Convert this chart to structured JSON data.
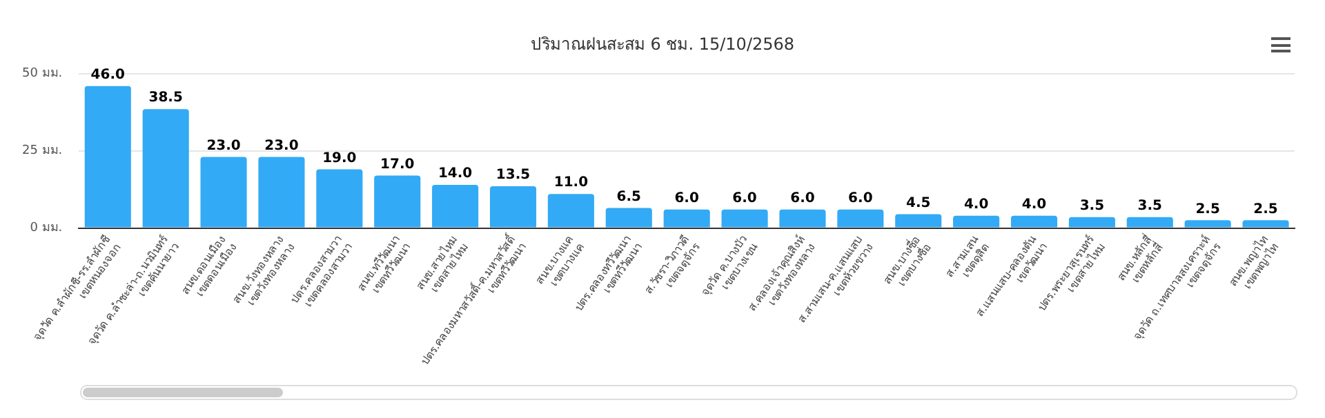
{
  "chart_data": {
    "type": "bar",
    "title": "ปริมาณฝนสะสม 6 ชม. 15/10/2568",
    "categories": [
      "จุดวัด ค.ลำผักชี-รร.ลำผักชี\nเขตหนองจอก",
      "จุดวัด ค.ลำชะล่า-ถ.นวมินทร์\nเขตคันนายาว",
      "สนข.ดอนเมือง\nเขตดอนเมือง",
      "สนข.วังทองหลาง\nเขตวังทองหลาง",
      "ปตร.คลองสามวา\nเขตคลองสามวา",
      "สนข.ทวีวัฒนา\nเขตทวีวัฒนา",
      "สนข.สายไหม\nเขตสายไหม",
      "ปตร.คลองมหาสวัสดิ์-ค.มหาสวัสดิ์\nเขตทวีวัฒนา",
      "สนข.บางแค\nเขตบางแค",
      "ปตร.คลองทวีวัฒนา\nเขตทวีวัฒนา",
      "ส.วัชรา-วิภาวดี\nเขตจตุจักร",
      "จุดวัด ค.บางบัว\nเขตบางเขน",
      "ส.คลองเจ้าคุณสิงห์\nเขตวังทองหลาง",
      "ส.สามเสน-ค.แสนแสบ\nเขตห้วยขวาง",
      "สนข.บางซื่อ\nเขตบางซื่อ",
      "ส.สามเสน\nเขตดุสิต",
      "ส.แสนแสบ-คลองตัน\nเขตวัฒนา",
      "ปตร.พระยาสุเรนทร์\nเขตสายไหม",
      "สนข.หลักสี่\nเขตหลักสี่",
      "จุดวัด ถ.เทศบาลสงเคราะห์\nเขตจตุจักร",
      "สนข.พญาไท\nเขตพญาไท"
    ],
    "values": [
      46.0,
      38.5,
      23.0,
      23.0,
      19.0,
      17.0,
      14.0,
      13.5,
      11.0,
      6.5,
      6.0,
      6.0,
      6.0,
      6.0,
      4.5,
      4.0,
      4.0,
      3.5,
      3.5,
      2.5,
      2.5
    ],
    "value_labels": [
      "46.0",
      "38.5",
      "23.0",
      "23.0",
      "19.0",
      "17.0",
      "14.0",
      "13.5",
      "11.0",
      "6.5",
      "6.0",
      "6.0",
      "6.0",
      "6.0",
      "4.5",
      "4.0",
      "4.0",
      "3.5",
      "3.5",
      "2.5",
      "2.5"
    ],
    "color": "#33aaf5",
    "ylim": [
      0,
      50
    ],
    "yticks": [
      {
        "value": 0,
        "label": "0 มม."
      },
      {
        "value": 25,
        "label": "25 มม."
      },
      {
        "value": 50,
        "label": "50 มม."
      }
    ],
    "grid": "y"
  }
}
